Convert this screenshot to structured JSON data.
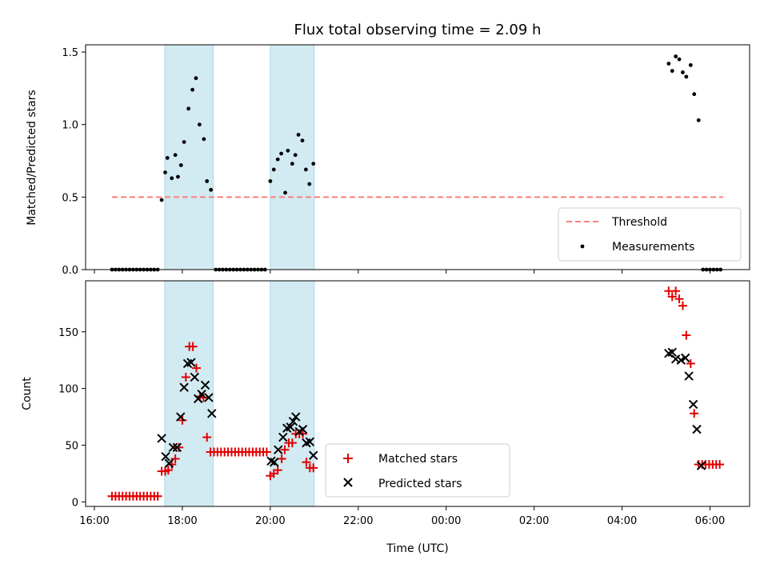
{
  "title": "Flux total observing time = 2.09 h",
  "colors": {
    "threshold": "#ff7f7f",
    "measurement": "#000000",
    "matched": "#e00000",
    "predicted": "#000000",
    "shade": "#add8e6"
  },
  "chart_data": [
    {
      "type": "scatter",
      "ylabel": "Matched/Predicted stars",
      "xlim_hours": [
        15.8,
        30.9
      ],
      "ylim": [
        0,
        1.55
      ],
      "yticks": [
        0.0,
        0.5,
        1.0,
        1.5
      ],
      "ytick_labels": [
        "0.0",
        "0.5",
        "1.0",
        "1.5"
      ],
      "shaded_intervals_hours": [
        [
          17.6,
          18.7
        ],
        [
          20.0,
          21.0
        ]
      ],
      "threshold": {
        "name": "Threshold",
        "value": 0.5,
        "x_range_hours": [
          16.4,
          30.3
        ]
      },
      "legend": {
        "placement": "lower right",
        "items": [
          "Threshold",
          "Measurements"
        ]
      },
      "series": [
        {
          "name": "Measurements",
          "points": [
            [
              16.4,
              0
            ],
            [
              16.48,
              0
            ],
            [
              16.56,
              0
            ],
            [
              16.64,
              0
            ],
            [
              16.72,
              0
            ],
            [
              16.8,
              0
            ],
            [
              16.88,
              0
            ],
            [
              16.96,
              0
            ],
            [
              17.04,
              0
            ],
            [
              17.12,
              0
            ],
            [
              17.2,
              0
            ],
            [
              17.28,
              0
            ],
            [
              17.36,
              0
            ],
            [
              17.44,
              0
            ],
            [
              17.53,
              0.48
            ],
            [
              17.61,
              0.67
            ],
            [
              17.66,
              0.77
            ],
            [
              17.76,
              0.63
            ],
            [
              17.84,
              0.79
            ],
            [
              17.9,
              0.64
            ],
            [
              17.97,
              0.72
            ],
            [
              18.04,
              0.88
            ],
            [
              18.14,
              1.11
            ],
            [
              18.23,
              1.24
            ],
            [
              18.31,
              1.32
            ],
            [
              18.39,
              1.0
            ],
            [
              18.49,
              0.9
            ],
            [
              18.56,
              0.61
            ],
            [
              18.65,
              0.55
            ],
            [
              18.76,
              0
            ],
            [
              18.84,
              0
            ],
            [
              18.92,
              0
            ],
            [
              19.0,
              0
            ],
            [
              19.08,
              0
            ],
            [
              19.16,
              0
            ],
            [
              19.24,
              0
            ],
            [
              19.32,
              0
            ],
            [
              19.4,
              0
            ],
            [
              19.48,
              0
            ],
            [
              19.56,
              0
            ],
            [
              19.64,
              0
            ],
            [
              19.72,
              0
            ],
            [
              19.8,
              0
            ],
            [
              19.88,
              0
            ],
            [
              20.0,
              0.61
            ],
            [
              20.08,
              0.69
            ],
            [
              20.17,
              0.76
            ],
            [
              20.25,
              0.8
            ],
            [
              20.34,
              0.53
            ],
            [
              20.4,
              0.82
            ],
            [
              20.5,
              0.73
            ],
            [
              20.57,
              0.79
            ],
            [
              20.64,
              0.93
            ],
            [
              20.73,
              0.89
            ],
            [
              20.81,
              0.69
            ],
            [
              20.89,
              0.59
            ],
            [
              20.98,
              0.73
            ],
            [
              29.06,
              1.42
            ],
            [
              29.14,
              1.37
            ],
            [
              29.22,
              1.47
            ],
            [
              29.3,
              1.45
            ],
            [
              29.38,
              1.36
            ],
            [
              29.46,
              1.33
            ],
            [
              29.56,
              1.41
            ],
            [
              29.64,
              1.21
            ],
            [
              29.74,
              1.03
            ],
            [
              29.84,
              0
            ],
            [
              29.92,
              0
            ],
            [
              30.0,
              0
            ],
            [
              30.08,
              0
            ],
            [
              30.16,
              0
            ],
            [
              30.24,
              0
            ]
          ]
        }
      ]
    },
    {
      "type": "scatter",
      "ylabel": "Count",
      "xlabel": "Time (UTC)",
      "xlim_hours": [
        15.8,
        30.9
      ],
      "ylim": [
        -4,
        195
      ],
      "yticks": [
        0,
        50,
        100,
        150
      ],
      "ytick_labels": [
        "0",
        "50",
        "100",
        "150"
      ],
      "xticks_hours": [
        16,
        18,
        20,
        22,
        24,
        26,
        28,
        30
      ],
      "xtick_labels": [
        "16:00",
        "18:00",
        "20:00",
        "22:00",
        "00:00",
        "02:00",
        "04:00",
        "06:00"
      ],
      "shaded_intervals_hours": [
        [
          17.6,
          18.7
        ],
        [
          20.0,
          21.0
        ]
      ],
      "legend": {
        "placement": "lower center",
        "items": [
          "Matched stars",
          "Predicted stars"
        ]
      },
      "series": [
        {
          "name": "Matched stars",
          "marker": "plus",
          "points": [
            [
              16.4,
              5
            ],
            [
              16.48,
              5
            ],
            [
              16.56,
              5
            ],
            [
              16.64,
              5
            ],
            [
              16.72,
              5
            ],
            [
              16.8,
              5
            ],
            [
              16.88,
              5
            ],
            [
              16.96,
              5
            ],
            [
              17.04,
              5
            ],
            [
              17.12,
              5
            ],
            [
              17.2,
              5
            ],
            [
              17.28,
              5
            ],
            [
              17.36,
              5
            ],
            [
              17.44,
              5
            ],
            [
              17.53,
              27
            ],
            [
              17.61,
              27
            ],
            [
              17.68,
              28
            ],
            [
              17.76,
              33
            ],
            [
              17.84,
              38
            ],
            [
              17.92,
              48
            ],
            [
              18.0,
              72
            ],
            [
              18.08,
              110
            ],
            [
              18.16,
              137
            ],
            [
              18.24,
              137
            ],
            [
              18.32,
              118
            ],
            [
              18.4,
              93
            ],
            [
              18.48,
              92
            ],
            [
              18.56,
              57
            ],
            [
              18.64,
              44
            ],
            [
              18.72,
              44
            ],
            [
              18.8,
              44
            ],
            [
              18.88,
              44
            ],
            [
              18.96,
              44
            ],
            [
              19.04,
              44
            ],
            [
              19.12,
              44
            ],
            [
              19.2,
              44
            ],
            [
              19.28,
              44
            ],
            [
              19.36,
              44
            ],
            [
              19.44,
              44
            ],
            [
              19.52,
              44
            ],
            [
              19.6,
              44
            ],
            [
              19.68,
              44
            ],
            [
              19.76,
              44
            ],
            [
              19.84,
              44
            ],
            [
              19.92,
              44
            ],
            [
              20.0,
              23
            ],
            [
              20.08,
              25
            ],
            [
              20.17,
              28
            ],
            [
              20.26,
              38
            ],
            [
              20.33,
              46
            ],
            [
              20.42,
              52
            ],
            [
              20.5,
              52
            ],
            [
              20.58,
              60
            ],
            [
              20.66,
              60
            ],
            [
              20.74,
              60
            ],
            [
              20.82,
              35
            ],
            [
              20.9,
              30
            ],
            [
              20.98,
              30
            ],
            [
              29.06,
              186
            ],
            [
              29.14,
              181
            ],
            [
              29.22,
              186
            ],
            [
              29.3,
              179
            ],
            [
              29.38,
              173
            ],
            [
              29.46,
              147
            ],
            [
              29.56,
              122
            ],
            [
              29.64,
              78
            ],
            [
              29.74,
              33
            ],
            [
              29.82,
              33
            ],
            [
              29.9,
              33
            ],
            [
              29.98,
              33
            ],
            [
              30.06,
              33
            ],
            [
              30.14,
              33
            ],
            [
              30.22,
              33
            ]
          ]
        },
        {
          "name": "Predicted stars",
          "marker": "x",
          "points": [
            [
              17.53,
              56
            ],
            [
              17.62,
              40
            ],
            [
              17.7,
              34
            ],
            [
              17.79,
              48
            ],
            [
              17.88,
              48
            ],
            [
              17.96,
              75
            ],
            [
              18.04,
              101
            ],
            [
              18.12,
              122
            ],
            [
              18.2,
              123
            ],
            [
              18.28,
              110
            ],
            [
              18.36,
              91
            ],
            [
              18.44,
              95
            ],
            [
              18.52,
              103
            ],
            [
              18.6,
              92
            ],
            [
              18.67,
              78
            ],
            [
              20.02,
              36
            ],
            [
              20.09,
              35
            ],
            [
              20.18,
              46
            ],
            [
              20.29,
              57
            ],
            [
              20.38,
              65
            ],
            [
              20.46,
              66
            ],
            [
              20.52,
              71
            ],
            [
              20.58,
              75
            ],
            [
              20.66,
              62
            ],
            [
              20.74,
              64
            ],
            [
              20.82,
              52
            ],
            [
              20.9,
              53
            ],
            [
              20.98,
              41
            ],
            [
              29.06,
              131
            ],
            [
              29.14,
              132
            ],
            [
              29.22,
              126
            ],
            [
              29.34,
              125
            ],
            [
              29.44,
              127
            ],
            [
              29.52,
              111
            ],
            [
              29.62,
              86
            ],
            [
              29.7,
              64
            ],
            [
              29.8,
              32
            ]
          ]
        }
      ]
    }
  ]
}
